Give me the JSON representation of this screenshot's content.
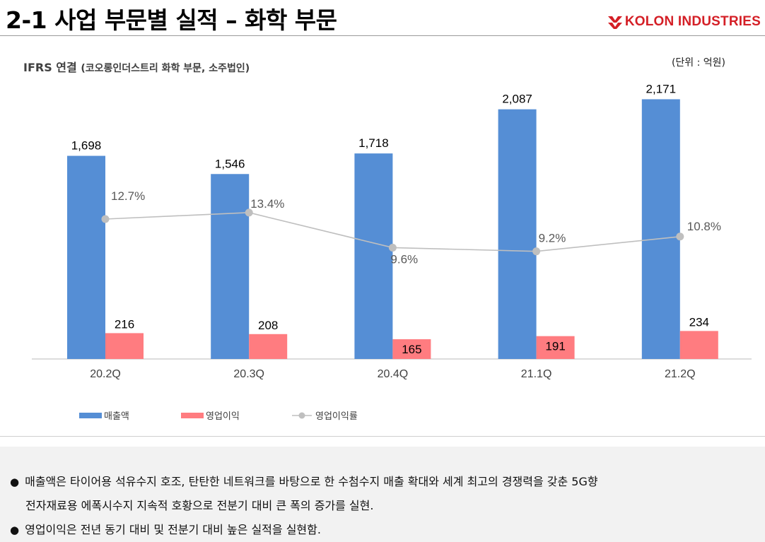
{
  "header": {
    "title": "2-1 사업 부문별 실적 – 화학 부문",
    "logo_text": "KOLON INDUSTRIES"
  },
  "colors": {
    "sales": "#558ed5",
    "op_profit": "#ff7c80",
    "margin": "#bfbfbf",
    "brand_red": "#d41f26"
  },
  "chart_data": {
    "type": "bar",
    "title": "IFRS 연결",
    "subtitle": "(코오롱인더스트리 화학 부문, 소주법인)",
    "unit": "(단위 : 억원)",
    "categories": [
      "20.2Q",
      "20.3Q",
      "20.4Q",
      "21.1Q",
      "21.2Q"
    ],
    "series": [
      {
        "name": "매출액",
        "type": "bar",
        "values": [
          1698,
          1546,
          1718,
          2087,
          2171
        ],
        "labels": [
          "1,698",
          "1,546",
          "1,718",
          "2,087",
          "2,171"
        ]
      },
      {
        "name": "영업이익",
        "type": "bar",
        "values": [
          216,
          208,
          165,
          191,
          234
        ],
        "labels": [
          "216",
          "208",
          "165",
          "191",
          "234"
        ]
      },
      {
        "name": "영업이익률",
        "type": "line",
        "values": [
          12.7,
          13.4,
          9.6,
          9.2,
          10.8
        ],
        "labels": [
          "12.7%",
          "13.4%",
          "9.6%",
          "9.2%",
          "10.8%"
        ]
      }
    ],
    "legend_position": "bottom-left",
    "grid": false
  },
  "notes": [
    {
      "bullet": "●",
      "text": "매출액은 타이어용 석유수지 호조, 탄탄한 네트워크를 바탕으로 한 수첨수지 매출 확대와 세계 최고의 경쟁력을 갖춘 5G향"
    },
    {
      "bullet": "",
      "text": "전자재료용 에폭시수지 지속적 호황으로 전분기 대비 큰 폭의 증가를 실현."
    },
    {
      "bullet": "●",
      "text": "영업이익은 전년 동기 대비 및 전분기 대비 높은 실적을 실현함."
    }
  ]
}
